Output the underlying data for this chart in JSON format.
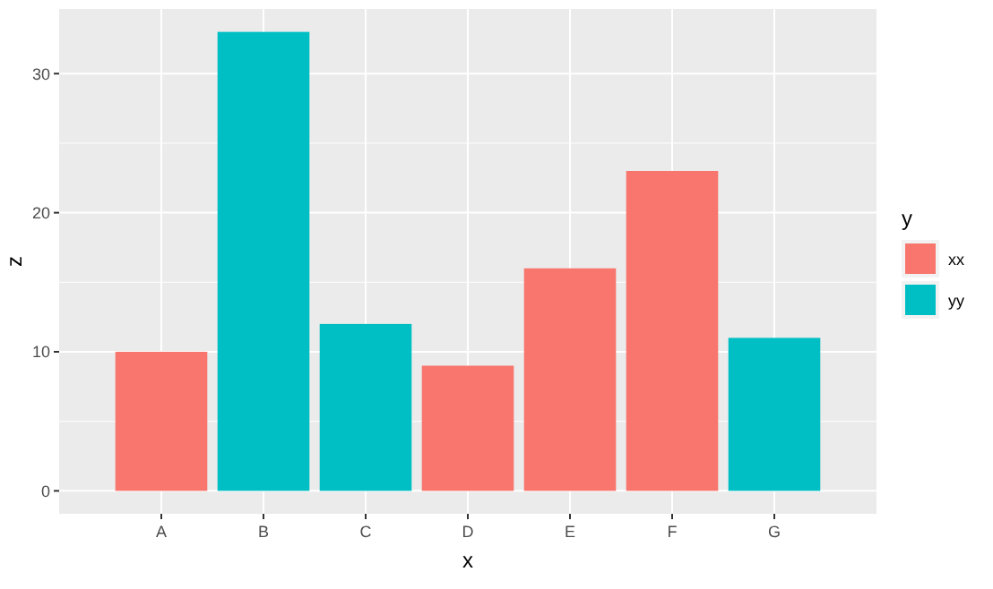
{
  "chart_data": {
    "type": "bar",
    "xlabel": "x",
    "ylabel": "z",
    "legend_title": "y",
    "categories": [
      "A",
      "B",
      "C",
      "D",
      "E",
      "F",
      "G"
    ],
    "series": [
      {
        "name": "xx",
        "color": "#f8766d",
        "values": [
          10,
          null,
          null,
          9,
          16,
          23,
          null
        ]
      },
      {
        "name": "yy",
        "color": "#00bfc4",
        "values": [
          null,
          33,
          12,
          null,
          null,
          null,
          11
        ]
      }
    ],
    "ylim": [
      -1.65,
      34.65
    ],
    "yticks": [
      0,
      10,
      20,
      30
    ],
    "grid": true,
    "legend": "right"
  }
}
